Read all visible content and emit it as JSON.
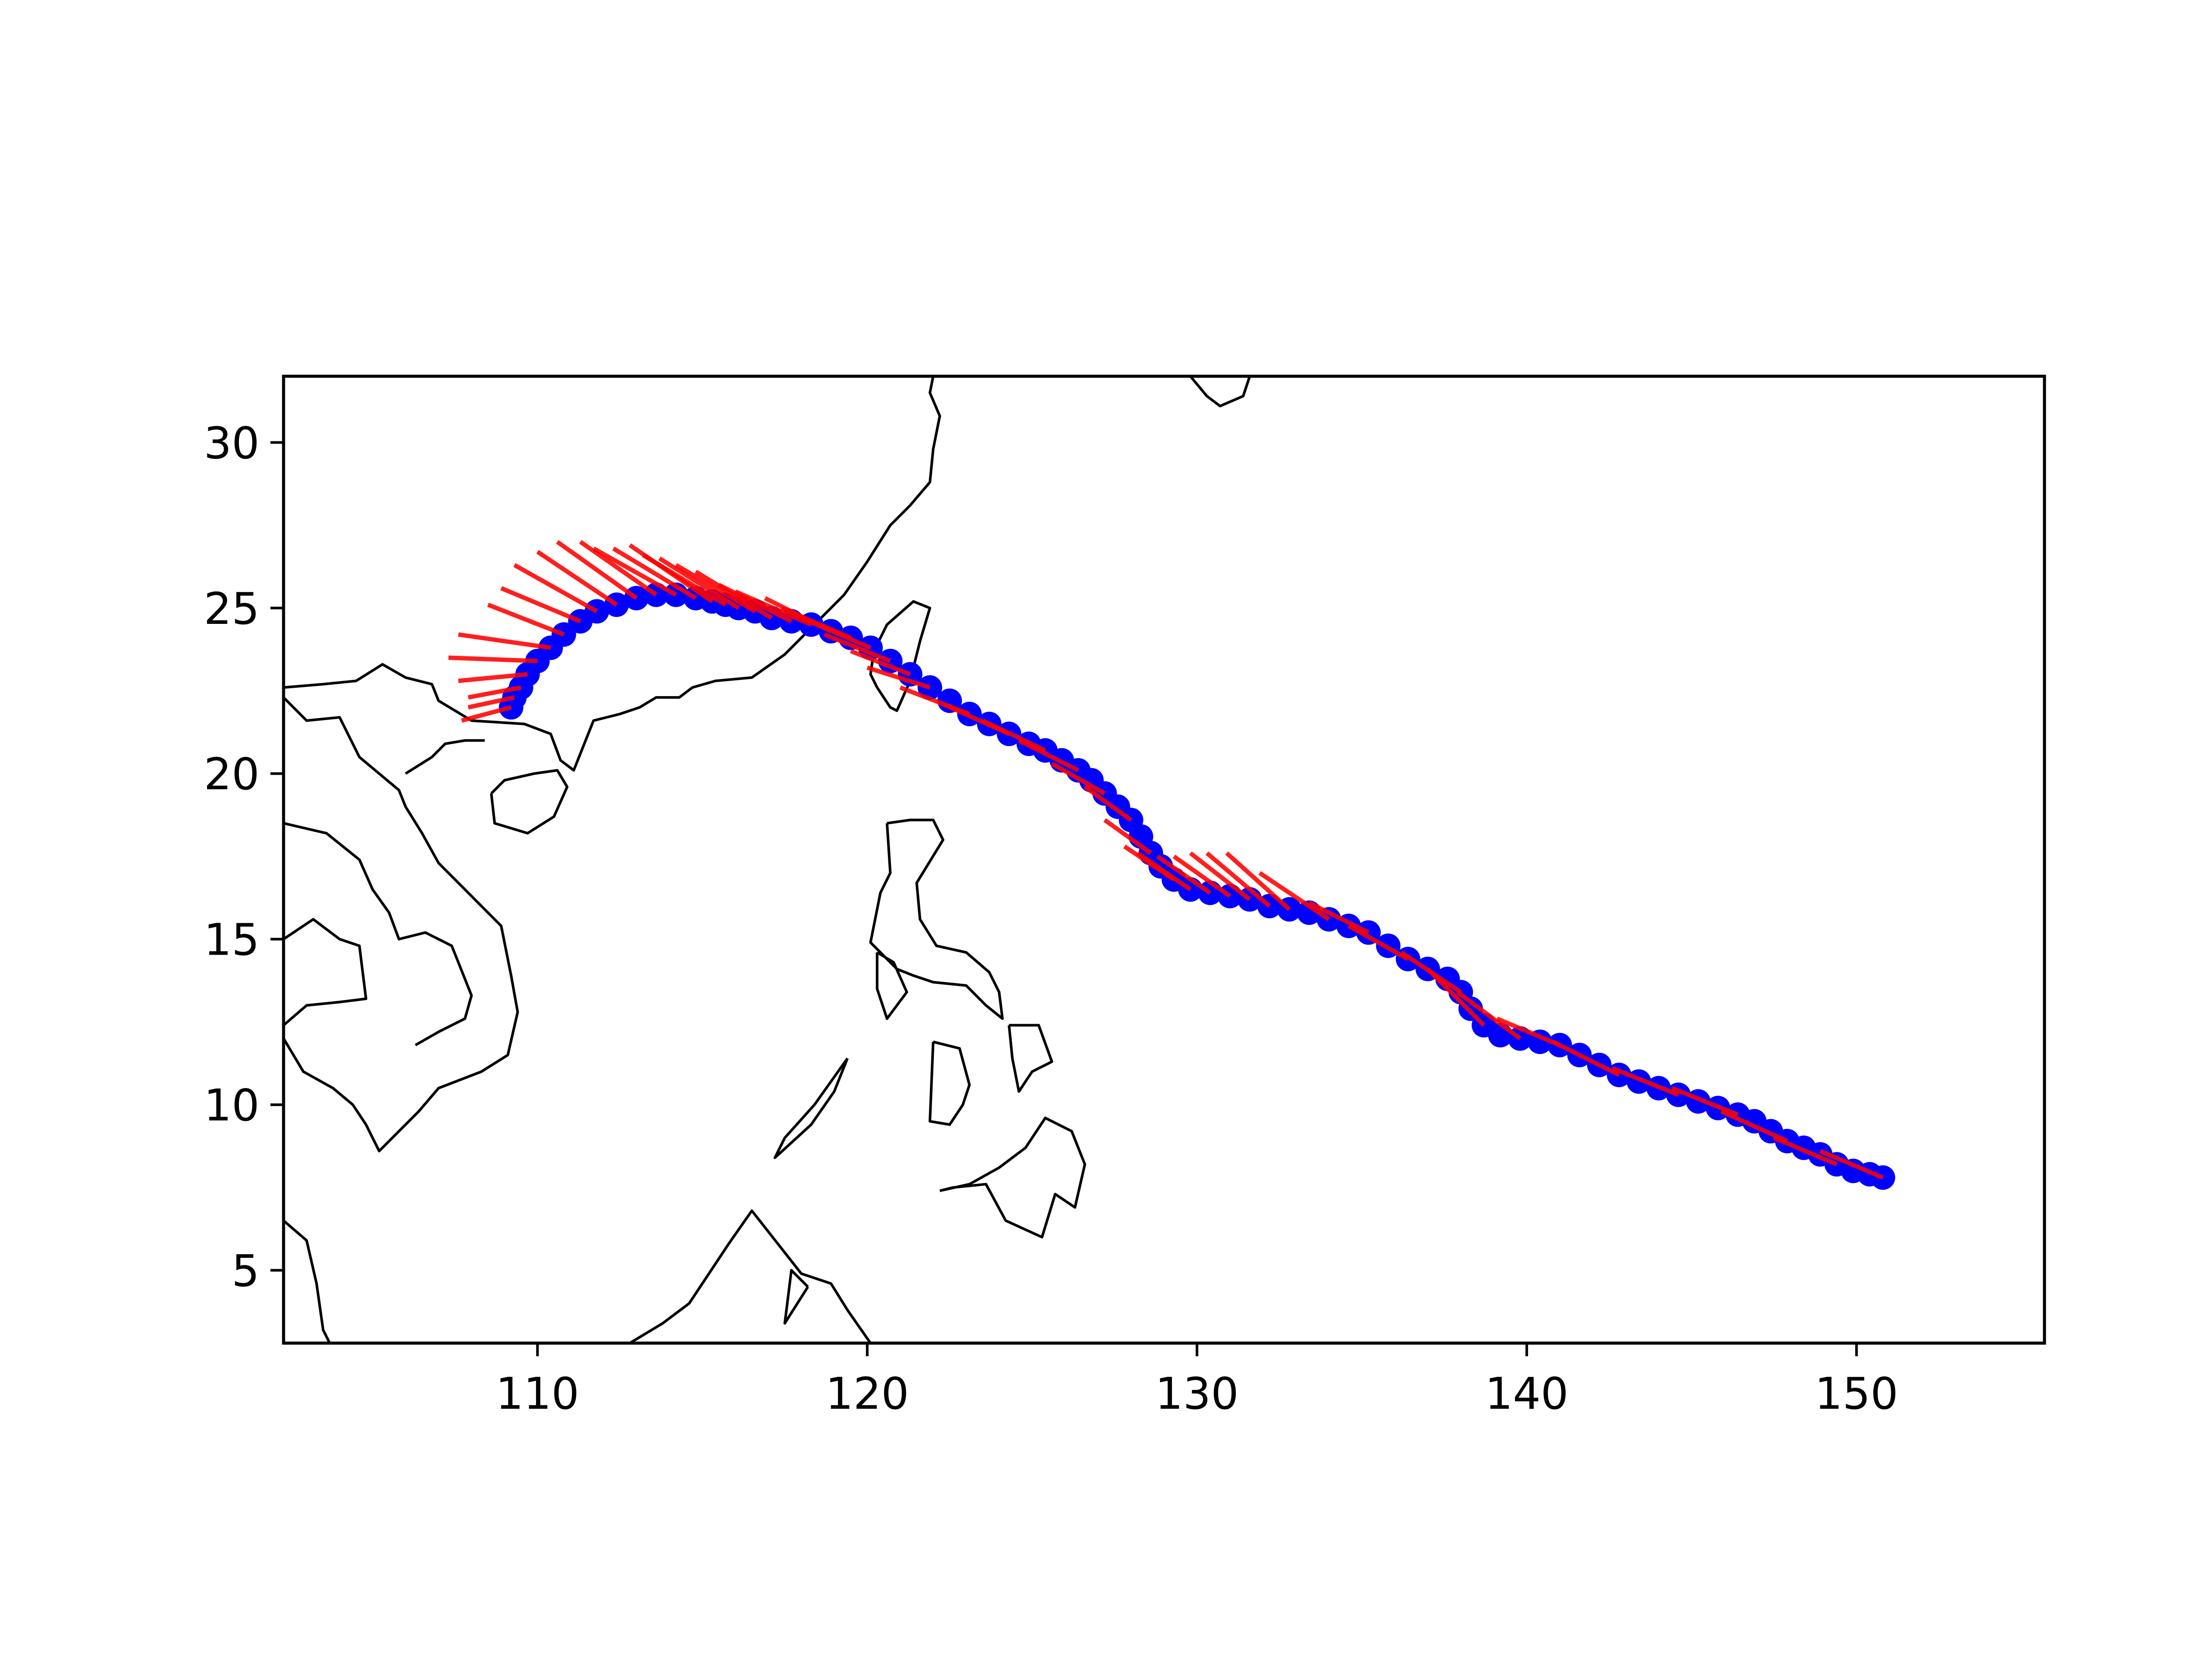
{
  "chart_data": {
    "type": "scatter",
    "title": "",
    "xlabel": "",
    "ylabel": "",
    "xlim": [
      102.3,
      155.7
    ],
    "ylim": [
      2.8,
      32.0
    ],
    "xticks": [
      110,
      120,
      130,
      140,
      150
    ],
    "yticks": [
      5,
      10,
      15,
      20,
      25,
      30
    ],
    "grid": false,
    "legend": "none",
    "colors": {
      "track": "#0000ff",
      "vectors": "#ff0000",
      "coastline": "#000000",
      "frame": "#000000"
    },
    "series": [
      {
        "kind": "track_points",
        "lon": [
          150.8,
          150.4,
          149.9,
          149.4,
          148.9,
          148.4,
          147.9,
          147.4,
          146.9,
          146.4,
          145.8,
          145.2,
          144.6,
          144.0,
          143.4,
          142.8,
          142.2,
          141.6,
          141.0,
          140.4,
          139.8,
          139.2,
          138.7,
          138.3,
          138.0,
          137.6,
          137.0,
          136.4,
          135.8,
          135.2,
          134.6,
          134.0,
          133.4,
          132.8,
          132.2,
          131.6,
          131.0,
          130.4,
          129.8,
          129.3,
          128.9,
          128.6,
          128.3,
          128.0,
          127.6,
          127.2,
          126.8,
          126.4,
          125.9,
          125.4,
          124.9,
          124.3,
          123.7,
          123.1,
          122.5,
          121.9,
          121.3,
          120.7,
          120.1,
          119.5,
          118.9,
          118.3,
          117.7,
          117.1,
          116.6,
          116.1,
          115.7,
          115.3,
          114.8,
          114.2,
          113.6,
          113.0,
          112.4,
          111.8,
          111.3,
          110.8,
          110.4,
          110.0,
          109.7,
          109.5,
          109.3,
          109.2
        ],
        "lat": [
          7.8,
          7.9,
          8.0,
          8.2,
          8.5,
          8.7,
          8.9,
          9.2,
          9.5,
          9.7,
          9.9,
          10.1,
          10.3,
          10.5,
          10.7,
          10.9,
          11.2,
          11.5,
          11.8,
          11.9,
          12.0,
          12.1,
          12.4,
          12.9,
          13.4,
          13.8,
          14.1,
          14.4,
          14.8,
          15.2,
          15.4,
          15.6,
          15.8,
          15.9,
          16.0,
          16.2,
          16.3,
          16.4,
          16.5,
          16.8,
          17.2,
          17.6,
          18.1,
          18.6,
          19.0,
          19.4,
          19.8,
          20.1,
          20.4,
          20.7,
          20.9,
          21.2,
          21.5,
          21.8,
          22.2,
          22.6,
          23.0,
          23.4,
          23.8,
          24.1,
          24.3,
          24.5,
          24.6,
          24.7,
          24.9,
          25.0,
          25.1,
          25.2,
          25.3,
          25.4,
          25.4,
          25.3,
          25.1,
          24.9,
          24.6,
          24.2,
          23.8,
          23.4,
          23.0,
          22.6,
          22.3,
          22.0
        ]
      },
      {
        "kind": "direction_vectors",
        "start": [
          [
            150.8,
            7.8
          ],
          [
            149.4,
            8.2
          ],
          [
            147.9,
            8.9
          ],
          [
            146.4,
            9.7
          ],
          [
            144.6,
            10.3
          ],
          [
            142.8,
            10.9
          ],
          [
            141.0,
            11.8
          ],
          [
            139.8,
            12.0
          ],
          [
            138.7,
            12.4
          ],
          [
            138.0,
            13.4
          ],
          [
            136.4,
            14.4
          ],
          [
            135.2,
            15.2
          ],
          [
            134.0,
            15.6
          ],
          [
            132.8,
            15.9
          ],
          [
            132.2,
            16.0
          ],
          [
            131.6,
            16.2
          ],
          [
            131.0,
            16.3
          ],
          [
            130.4,
            16.4
          ],
          [
            129.8,
            16.5
          ],
          [
            129.3,
            16.8
          ],
          [
            128.6,
            17.6
          ],
          [
            128.0,
            18.6
          ],
          [
            127.2,
            19.4
          ],
          [
            126.4,
            20.1
          ],
          [
            125.4,
            20.7
          ],
          [
            124.3,
            21.2
          ],
          [
            123.1,
            21.8
          ],
          [
            121.9,
            22.6
          ],
          [
            121.3,
            23.0
          ],
          [
            120.7,
            23.4
          ],
          [
            120.1,
            23.8
          ],
          [
            119.5,
            24.1
          ],
          [
            118.9,
            24.3
          ],
          [
            118.3,
            24.5
          ],
          [
            117.7,
            24.6
          ],
          [
            117.1,
            24.7
          ],
          [
            116.6,
            24.9
          ],
          [
            116.1,
            25.0
          ],
          [
            115.7,
            25.1
          ],
          [
            115.3,
            25.2
          ],
          [
            114.8,
            25.3
          ],
          [
            114.2,
            25.4
          ],
          [
            113.6,
            25.4
          ],
          [
            113.0,
            25.3
          ],
          [
            112.4,
            25.1
          ],
          [
            111.8,
            24.9
          ],
          [
            111.3,
            24.6
          ],
          [
            110.8,
            24.2
          ],
          [
            110.4,
            23.8
          ],
          [
            110.0,
            23.4
          ],
          [
            109.7,
            23.0
          ],
          [
            109.5,
            22.6
          ],
          [
            109.3,
            22.3
          ],
          [
            109.2,
            22.0
          ]
        ],
        "end": [
          [
            148.9,
            8.6
          ],
          [
            147.5,
            9.0
          ],
          [
            145.9,
            9.8
          ],
          [
            144.4,
            10.5
          ],
          [
            142.6,
            11.1
          ],
          [
            140.8,
            11.9
          ],
          [
            139.1,
            12.6
          ],
          [
            137.9,
            13.4
          ],
          [
            137.0,
            14.1
          ],
          [
            136.2,
            14.6
          ],
          [
            134.6,
            15.4
          ],
          [
            133.4,
            16.1
          ],
          [
            131.9,
            17.0
          ],
          [
            130.9,
            17.6
          ],
          [
            130.3,
            17.6
          ],
          [
            129.8,
            17.6
          ],
          [
            129.3,
            17.5
          ],
          [
            128.8,
            17.5
          ],
          [
            128.2,
            17.6
          ],
          [
            127.8,
            17.8
          ],
          [
            127.2,
            18.6
          ],
          [
            126.6,
            19.6
          ],
          [
            125.6,
            20.3
          ],
          [
            124.6,
            21.0
          ],
          [
            123.5,
            21.6
          ],
          [
            122.3,
            22.1
          ],
          [
            121.0,
            22.6
          ],
          [
            120.0,
            23.2
          ],
          [
            119.5,
            23.7
          ],
          [
            118.7,
            24.2
          ],
          [
            118.0,
            24.7
          ],
          [
            117.4,
            25.0
          ],
          [
            116.9,
            25.3
          ],
          [
            116.0,
            25.5
          ],
          [
            115.5,
            25.7
          ],
          [
            114.8,
            26.1
          ],
          [
            114.2,
            26.3
          ],
          [
            113.7,
            26.5
          ],
          [
            113.2,
            26.6
          ],
          [
            112.8,
            26.9
          ],
          [
            112.3,
            26.8
          ],
          [
            111.7,
            26.8
          ],
          [
            111.3,
            27.0
          ],
          [
            110.6,
            27.0
          ],
          [
            110.0,
            26.7
          ],
          [
            109.3,
            26.3
          ],
          [
            108.9,
            25.6
          ],
          [
            108.5,
            25.1
          ],
          [
            107.6,
            24.2
          ],
          [
            107.3,
            23.5
          ],
          [
            107.6,
            22.8
          ],
          [
            107.9,
            22.3
          ],
          [
            107.9,
            22.0
          ],
          [
            107.7,
            21.6
          ]
        ]
      }
    ]
  }
}
